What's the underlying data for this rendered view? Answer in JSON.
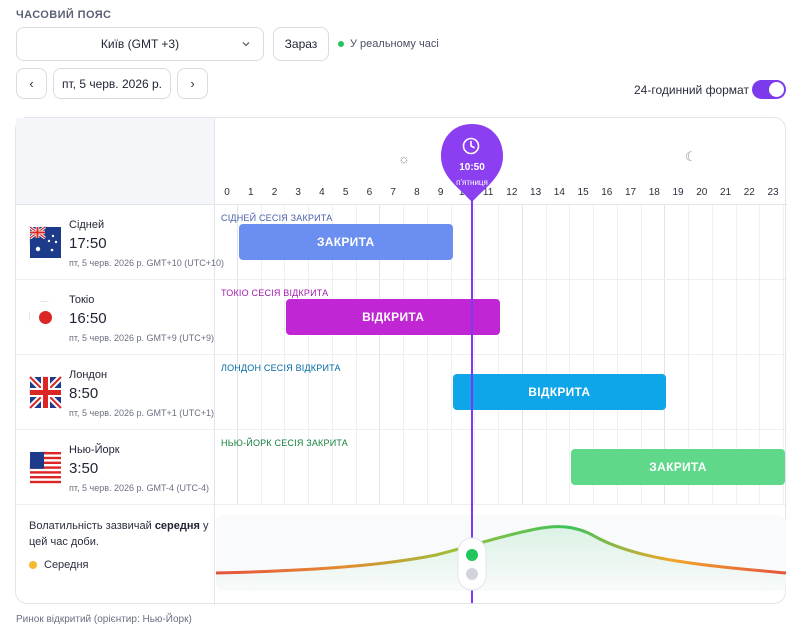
{
  "timezone": {
    "label": "ЧАСОВИЙ ПОЯС",
    "selected": "Київ (GMT +3)",
    "now_button": "Зараз",
    "live_status": "У реальному часі"
  },
  "date_nav": {
    "prev": "‹",
    "next": "›",
    "date": "пт, 5 черв. 2026 р."
  },
  "format_toggle": {
    "label": "24-годинний формат",
    "enabled": true
  },
  "timeline": {
    "hours": [
      "0",
      "1",
      "2",
      "3",
      "4",
      "5",
      "6",
      "7",
      "8",
      "9",
      "10",
      "11",
      "12",
      "13",
      "14",
      "15",
      "16",
      "17",
      "18",
      "19",
      "20",
      "21",
      "22",
      "23"
    ],
    "now_time": "10:50",
    "now_day": "п'ятниця",
    "now_hour": 10.83
  },
  "markets": [
    {
      "city": "Сідней",
      "time": "17:50",
      "date": "пт, 5 черв. 2026 р. GMT+10 (UTC+10)",
      "session_label": "СІДНЕЙ СЕСІЯ ЗАКРИТА",
      "status": "ЗАКРИТА",
      "start_hour": 0.5,
      "end_hour": 9.5,
      "color": "#6b8ff0",
      "label_color": "#4a5ea8",
      "flag": "australia"
    },
    {
      "city": "Токіо",
      "time": "16:50",
      "date": "пт, 5 черв. 2026 р. GMT+9 (UTC+9)",
      "session_label": "ТОКІО СЕСІЯ ВІДКРИТА",
      "status": "ВІДКРИТА",
      "start_hour": 2.5,
      "end_hour": 11.5,
      "color": "#c026d3",
      "label_color": "#a21caf",
      "flag": "japan"
    },
    {
      "city": "Лондон",
      "time": "8:50",
      "date": "пт, 5 черв. 2026 р. GMT+1 (UTC+1)",
      "session_label": "ЛОНДОН СЕСІЯ ВІДКРИТА",
      "status": "ВІДКРИТА",
      "start_hour": 9.5,
      "end_hour": 18.5,
      "color": "#0ea5e9",
      "label_color": "#0369a1",
      "flag": "uk"
    },
    {
      "city": "Нью-Йорк",
      "time": "3:50",
      "date": "пт, 5 черв. 2026 р. GMT-4 (UTC-4)",
      "session_label": "НЬЮ-ЙОРК СЕСІЯ ЗАКРИТА",
      "status": "ЗАКРИТА",
      "start_hour": 14.5,
      "end_hour": 23.5,
      "color": "#5fd88a",
      "label_color": "#15803d",
      "flag": "usa"
    }
  ],
  "volatility": {
    "text_prefix": "Волатильність зазвичай",
    "level": "середня",
    "text_suffix": "у цей час доби.",
    "legend": "Середня",
    "legend_color": "#f5b82e"
  },
  "footer": "Ринок відкритий (орієнтир: Нью-Йорк)"
}
